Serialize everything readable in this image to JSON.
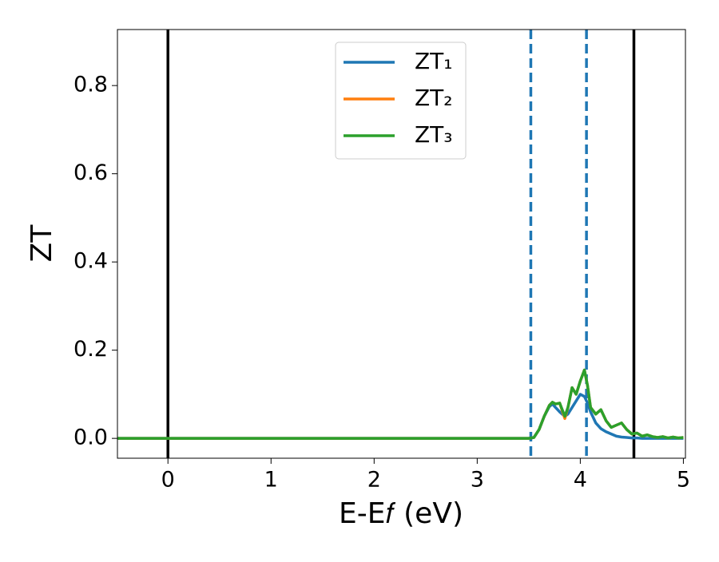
{
  "chart_data": {
    "type": "line",
    "xlabel": "E-E𝑓 (eV)",
    "ylabel": "ZT",
    "x": [
      -0.5,
      3.5,
      3.55,
      3.6,
      3.65,
      3.7,
      3.73,
      3.76,
      3.8,
      3.85,
      3.88,
      3.92,
      3.96,
      4.0,
      4.04,
      4.07,
      4.1,
      4.15,
      4.2,
      4.25,
      4.3,
      4.35,
      4.4,
      4.45,
      4.5,
      4.55,
      4.6,
      4.65,
      4.7,
      4.75,
      4.8,
      4.85,
      4.9,
      4.95,
      5.0
    ],
    "series": [
      {
        "name": "ZT₁",
        "color": "#1f77b4",
        "values": [
          0,
          0,
          0.002,
          0.02,
          0.05,
          0.072,
          0.078,
          0.07,
          0.06,
          0.05,
          0.055,
          0.07,
          0.085,
          0.1,
          0.095,
          0.08,
          0.06,
          0.035,
          0.022,
          0.015,
          0.01,
          0.005,
          0.003,
          0.002,
          0.001,
          0.001,
          0,
          0,
          0,
          0,
          0,
          0,
          0,
          0,
          0
        ]
      },
      {
        "name": "ZT₂",
        "color": "#ff7f0e",
        "values": [
          0,
          0,
          0.002,
          0.02,
          0.05,
          0.075,
          0.082,
          0.078,
          0.08,
          0.045,
          0.07,
          0.115,
          0.1,
          0.13,
          0.155,
          0.12,
          0.07,
          0.055,
          0.065,
          0.04,
          0.025,
          0.03,
          0.035,
          0.02,
          0.01,
          0.012,
          0.005,
          0.008,
          0.004,
          0.002,
          0.004,
          0.001,
          0.003,
          0.001,
          0.002
        ]
      },
      {
        "name": "ZT₃",
        "color": "#2ca02c",
        "values": [
          0,
          0,
          0.002,
          0.02,
          0.05,
          0.075,
          0.082,
          0.078,
          0.08,
          0.05,
          0.07,
          0.115,
          0.1,
          0.13,
          0.155,
          0.12,
          0.07,
          0.055,
          0.065,
          0.04,
          0.025,
          0.03,
          0.035,
          0.02,
          0.01,
          0.012,
          0.005,
          0.008,
          0.004,
          0.002,
          0.004,
          0.001,
          0.003,
          0.001,
          0.002
        ]
      }
    ],
    "vlines_solid": {
      "color": "#000000",
      "x": [
        0,
        4.52
      ]
    },
    "vlines_dashed": {
      "color": "#1f77b4",
      "x": [
        3.52,
        4.06
      ]
    },
    "xlim": [
      -0.49,
      5.02
    ],
    "ylim": [
      -0.045,
      0.927
    ],
    "xticks": [
      0,
      1,
      2,
      3,
      4,
      5
    ],
    "yticks": [
      {
        "value": 0,
        "label": "0.0"
      },
      0.2,
      0.4,
      0.6,
      0.8
    ],
    "legend": "upper center"
  }
}
